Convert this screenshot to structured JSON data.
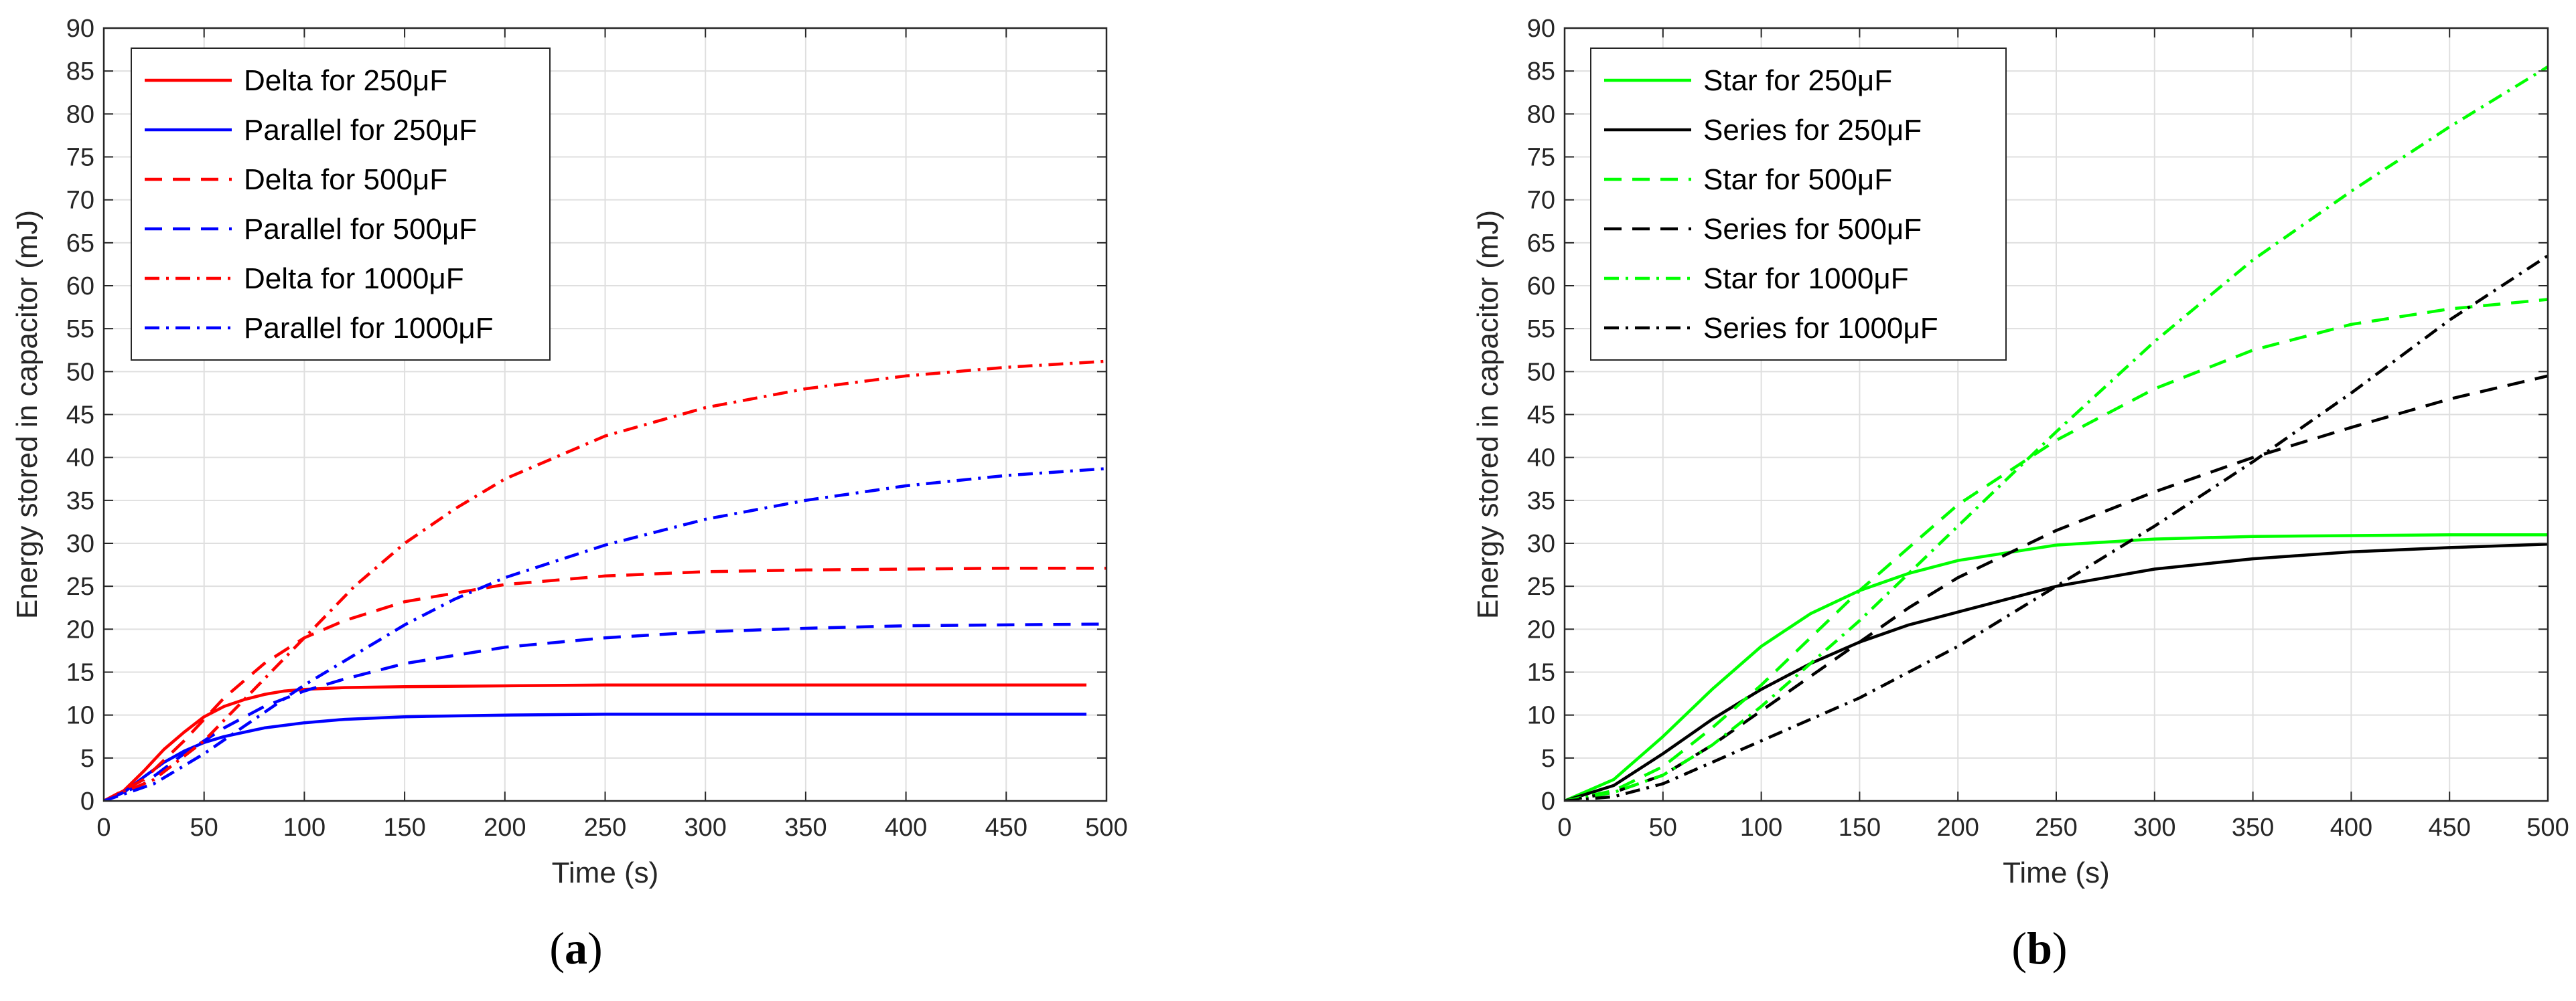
{
  "chart_data": [
    {
      "type": "line",
      "panel_label": "a",
      "xlabel": "Time (s)",
      "ylabel": "Energy stored in capacitor (mJ)",
      "xlim": [
        0,
        500
      ],
      "ylim": [
        0,
        90
      ],
      "xticks": [
        0,
        50,
        100,
        150,
        200,
        250,
        300,
        350,
        400,
        450,
        500
      ],
      "yticks": [
        0,
        5,
        10,
        15,
        20,
        25,
        30,
        35,
        40,
        45,
        50,
        55,
        60,
        65,
        70,
        75,
        80,
        85,
        90
      ],
      "grid": true,
      "legend_position": "top-left",
      "series": [
        {
          "name": "Delta for 250μF",
          "color": "#ff0000",
          "dash": "solid",
          "x": [
            0,
            10,
            20,
            30,
            40,
            50,
            60,
            70,
            80,
            90,
            100,
            120,
            150,
            200,
            250,
            300,
            400,
            490
          ],
          "y": [
            0,
            1.2,
            3.5,
            6.0,
            8.0,
            9.8,
            11.0,
            11.8,
            12.4,
            12.8,
            13.0,
            13.2,
            13.3,
            13.4,
            13.5,
            13.5,
            13.5,
            13.5
          ]
        },
        {
          "name": "Parallel for 250μF",
          "color": "#0000ff",
          "dash": "solid",
          "x": [
            0,
            10,
            20,
            30,
            40,
            50,
            60,
            80,
            100,
            120,
            150,
            200,
            250,
            300,
            400,
            490
          ],
          "y": [
            0,
            1.0,
            2.8,
            4.5,
            5.8,
            6.8,
            7.5,
            8.5,
            9.1,
            9.5,
            9.8,
            10.0,
            10.1,
            10.1,
            10.1,
            10.1
          ]
        },
        {
          "name": "Delta for 500μF",
          "color": "#ff0000",
          "dash": "dashed",
          "x": [
            0,
            20,
            40,
            60,
            80,
            100,
            120,
            150,
            200,
            250,
            300,
            350,
            400,
            450,
            500
          ],
          "y": [
            0,
            2.5,
            7.0,
            12.0,
            16.0,
            19.0,
            21.0,
            23.2,
            25.2,
            26.2,
            26.7,
            26.9,
            27.0,
            27.1,
            27.1
          ]
        },
        {
          "name": "Parallel for 500μF",
          "color": "#0000ff",
          "dash": "dashed",
          "x": [
            0,
            20,
            40,
            60,
            80,
            100,
            120,
            150,
            200,
            250,
            300,
            350,
            400,
            450,
            500
          ],
          "y": [
            0,
            2.0,
            5.5,
            8.5,
            11.0,
            12.8,
            14.2,
            16.0,
            17.9,
            19.0,
            19.7,
            20.1,
            20.4,
            20.5,
            20.6
          ]
        },
        {
          "name": "Delta for 1000μF",
          "color": "#ff0000",
          "dash": "dashdot",
          "x": [
            0,
            25,
            50,
            75,
            100,
            125,
            150,
            175,
            200,
            250,
            300,
            350,
            400,
            450,
            500
          ],
          "y": [
            0,
            2.5,
            7.0,
            13.0,
            19.0,
            25.0,
            30.0,
            34.0,
            37.5,
            42.5,
            45.8,
            48.0,
            49.5,
            50.5,
            51.2
          ]
        },
        {
          "name": "Parallel for 1000μF",
          "color": "#0000ff",
          "dash": "dashdot",
          "x": [
            0,
            25,
            50,
            75,
            100,
            125,
            150,
            175,
            200,
            250,
            300,
            350,
            400,
            450,
            500
          ],
          "y": [
            0,
            2.0,
            5.5,
            9.5,
            13.5,
            17.0,
            20.5,
            23.5,
            26.0,
            29.8,
            32.8,
            35.0,
            36.7,
            37.9,
            38.7
          ]
        }
      ]
    },
    {
      "type": "line",
      "panel_label": "b",
      "xlabel": "Time (s)",
      "ylabel": "Energy stored in capacitor (mJ)",
      "xlim": [
        0,
        500
      ],
      "ylim": [
        0,
        90
      ],
      "xticks": [
        0,
        50,
        100,
        150,
        200,
        250,
        300,
        350,
        400,
        450,
        500
      ],
      "yticks": [
        0,
        5,
        10,
        15,
        20,
        25,
        30,
        35,
        40,
        45,
        50,
        55,
        60,
        65,
        70,
        75,
        80,
        85,
        90
      ],
      "grid": true,
      "legend_position": "top-left",
      "series": [
        {
          "name": "Star for 250μF",
          "color": "#00ff00",
          "dash": "solid",
          "x": [
            0,
            25,
            50,
            75,
            100,
            125,
            150,
            175,
            200,
            250,
            300,
            350,
            400,
            450,
            500
          ],
          "y": [
            0,
            2.5,
            7.5,
            13.0,
            18.0,
            21.8,
            24.5,
            26.5,
            28.0,
            29.8,
            30.5,
            30.8,
            30.9,
            31.0,
            31.0
          ]
        },
        {
          "name": "Series for 250μF",
          "color": "#000000",
          "dash": "solid",
          "x": [
            0,
            25,
            50,
            75,
            100,
            125,
            150,
            175,
            200,
            250,
            300,
            350,
            400,
            450,
            500
          ],
          "y": [
            0,
            1.8,
            5.5,
            9.5,
            13.0,
            16.0,
            18.5,
            20.5,
            22.0,
            25.0,
            27.0,
            28.2,
            29.0,
            29.5,
            29.9
          ]
        },
        {
          "name": "Star for 500μF",
          "color": "#00ff00",
          "dash": "dashed",
          "x": [
            0,
            25,
            50,
            75,
            100,
            125,
            150,
            175,
            200,
            250,
            300,
            350,
            400,
            450,
            500
          ],
          "y": [
            0,
            1.2,
            4.0,
            8.5,
            13.5,
            19.0,
            24.5,
            29.5,
            34.5,
            42.0,
            48.0,
            52.5,
            55.5,
            57.3,
            58.4
          ]
        },
        {
          "name": "Series for 500μF",
          "color": "#000000",
          "dash": "dashed",
          "x": [
            0,
            25,
            50,
            75,
            100,
            125,
            150,
            175,
            200,
            250,
            300,
            350,
            400,
            450,
            500
          ],
          "y": [
            0,
            1.0,
            3.0,
            6.5,
            10.5,
            14.5,
            18.5,
            22.5,
            26.0,
            31.5,
            36.0,
            40.0,
            43.5,
            46.8,
            49.5
          ]
        },
        {
          "name": "Star for 1000μF",
          "color": "#00ff00",
          "dash": "dashdot",
          "x": [
            0,
            25,
            50,
            75,
            100,
            125,
            150,
            175,
            200,
            250,
            300,
            350,
            400,
            450,
            500
          ],
          "y": [
            0,
            1.0,
            3.0,
            6.5,
            11.0,
            16.0,
            21.0,
            26.5,
            32.0,
            43.0,
            53.5,
            63.0,
            71.0,
            78.5,
            85.5
          ]
        },
        {
          "name": "Series for 1000μF",
          "color": "#000000",
          "dash": "dashdot",
          "x": [
            0,
            25,
            50,
            75,
            100,
            125,
            150,
            175,
            200,
            250,
            300,
            350,
            400,
            450,
            500
          ],
          "y": [
            0,
            0.5,
            2.0,
            4.5,
            7.0,
            9.5,
            12.0,
            15.0,
            18.0,
            25.0,
            32.0,
            39.5,
            47.5,
            56.0,
            63.5
          ]
        }
      ]
    }
  ]
}
